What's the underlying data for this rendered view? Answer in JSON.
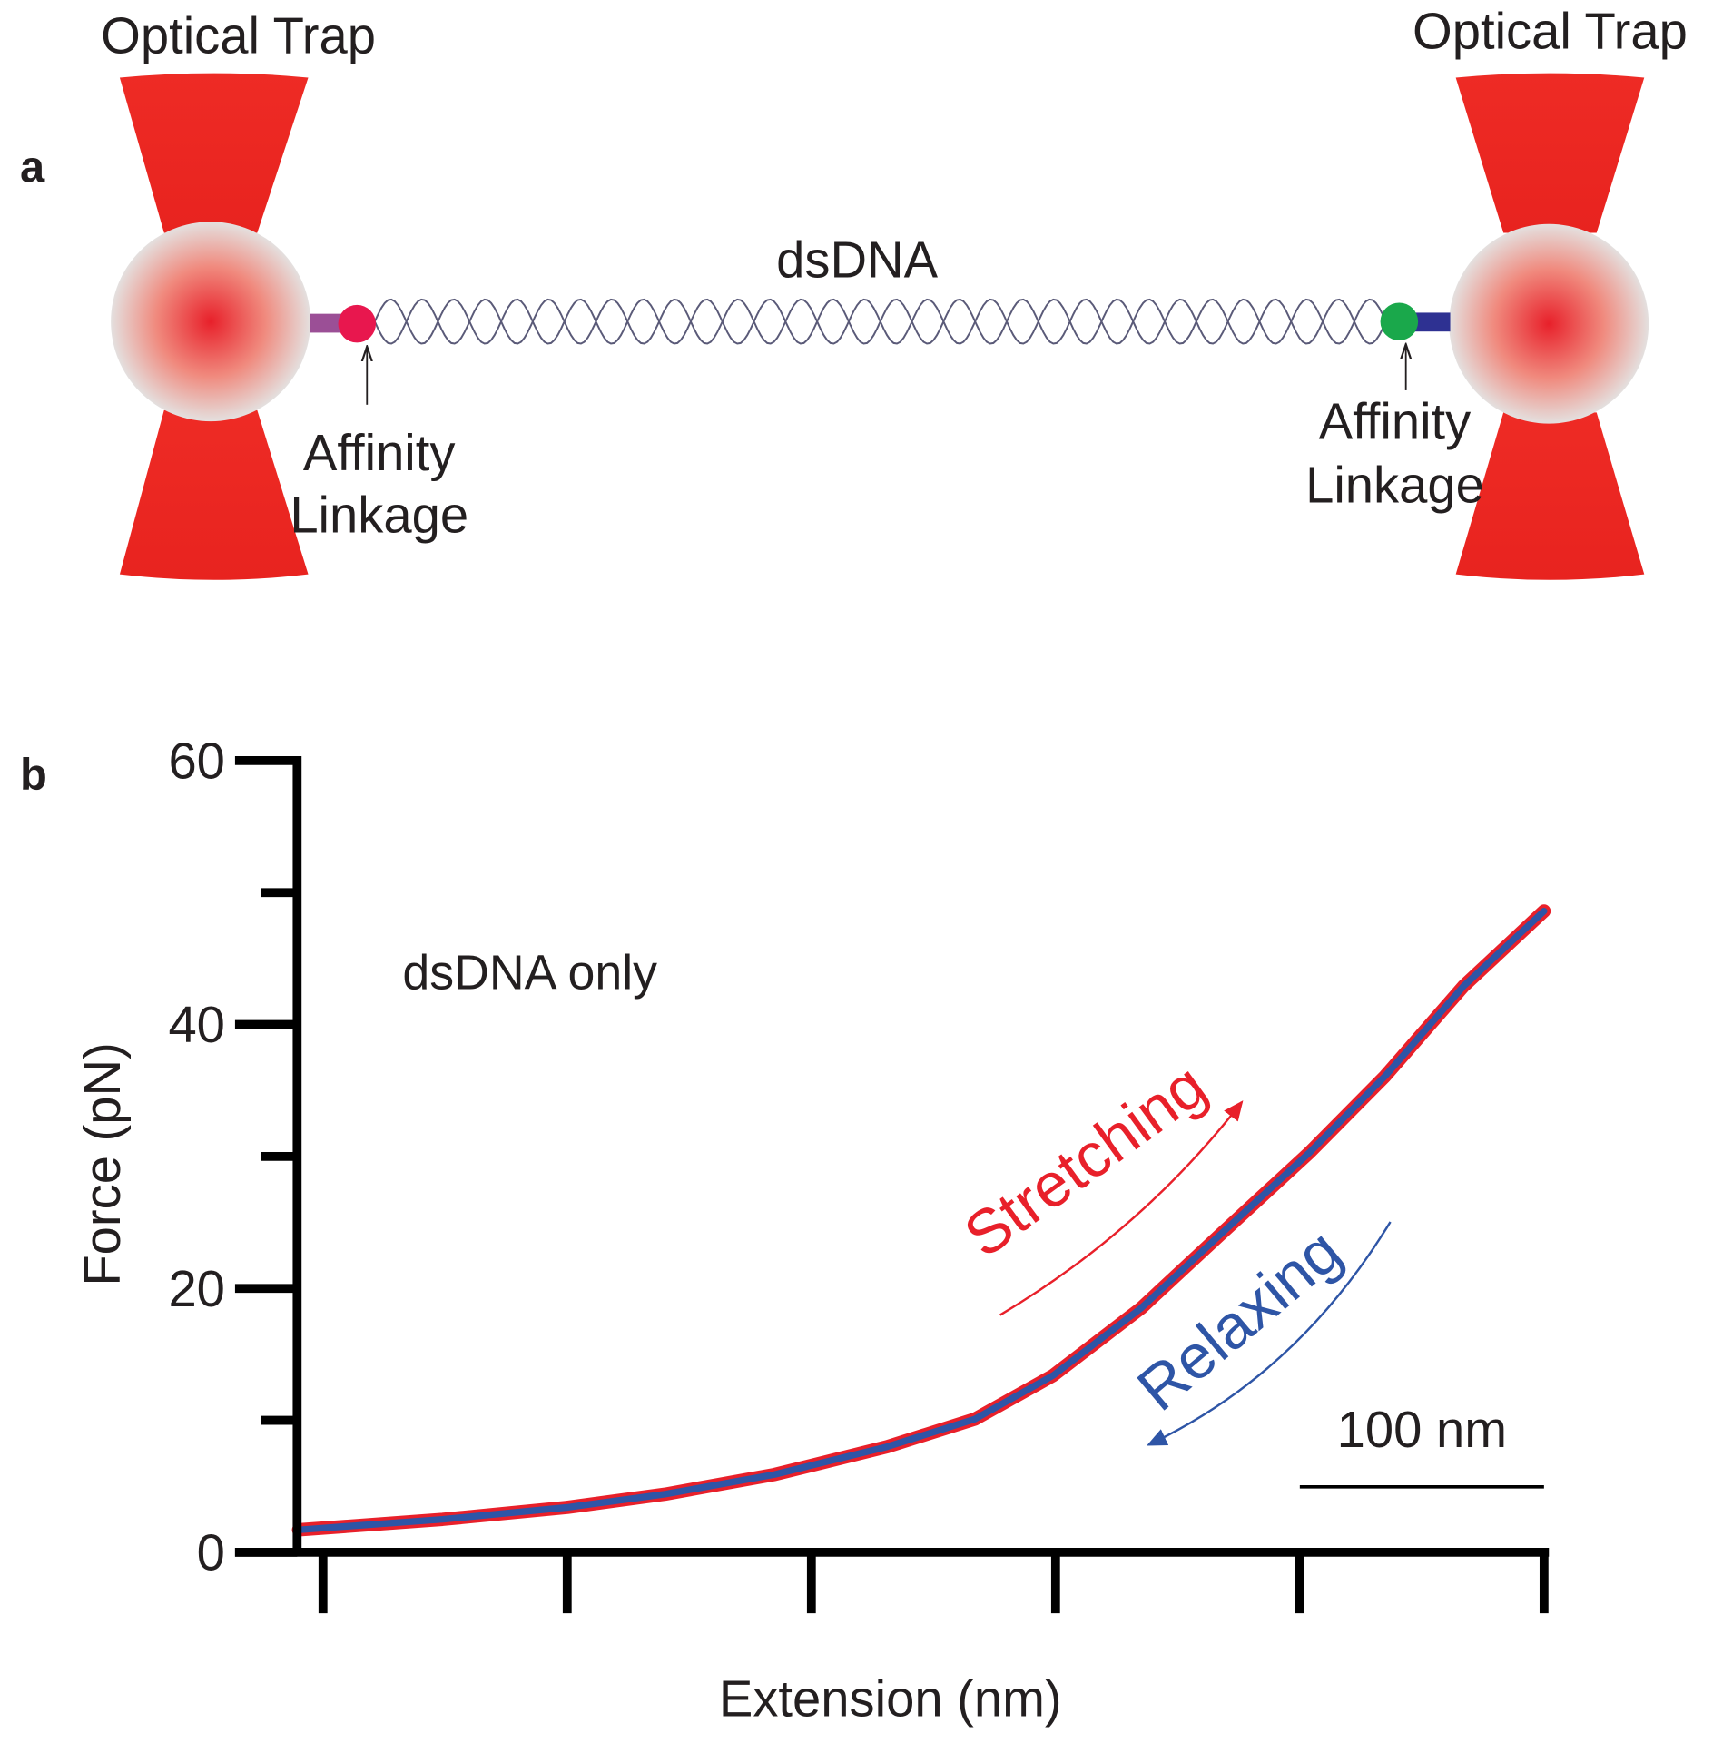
{
  "panel_a": {
    "label": "a",
    "trap_left": "Optical Trap",
    "trap_right": "Optical Trap",
    "dna": "dsDNA",
    "linkage_left": [
      "Affinity",
      "Linkage"
    ],
    "linkage_right": [
      "Affinity",
      "Linkage"
    ]
  },
  "chart_data": {
    "type": "line",
    "panel_label": "b",
    "annotation": "dsDNA only",
    "y_label": "Force (pN)",
    "x_label": "Extension (nm)",
    "x": [
      -10,
      49,
      100,
      140,
      185,
      231,
      267,
      299,
      335,
      367,
      404,
      435,
      467,
      500
    ],
    "series": [
      {
        "name": "Stretching",
        "color": "#e8202a",
        "values": [
          1.7,
          2.5,
          3.4,
          4.4,
          5.9,
          8.0,
          10.1,
          13.4,
          18.5,
          24.0,
          30.3,
          36.1,
          42.9,
          48.6
        ]
      },
      {
        "name": "Relaxing",
        "color": "#2e55a6",
        "values": [
          1.7,
          2.5,
          3.4,
          4.4,
          5.9,
          8.0,
          10.1,
          13.4,
          18.5,
          24.0,
          30.3,
          36.1,
          42.9,
          48.6
        ]
      }
    ],
    "xlim": [
      -36,
      502
    ],
    "xticks": [
      0,
      100,
      200,
      300,
      400,
      500
    ],
    "ylim": [
      0,
      60
    ],
    "yticks": [
      0,
      20,
      40,
      60
    ],
    "yticks_minor": [
      10,
      30,
      50
    ],
    "scale_bar": {
      "label": "100 nm",
      "length": 100
    }
  }
}
